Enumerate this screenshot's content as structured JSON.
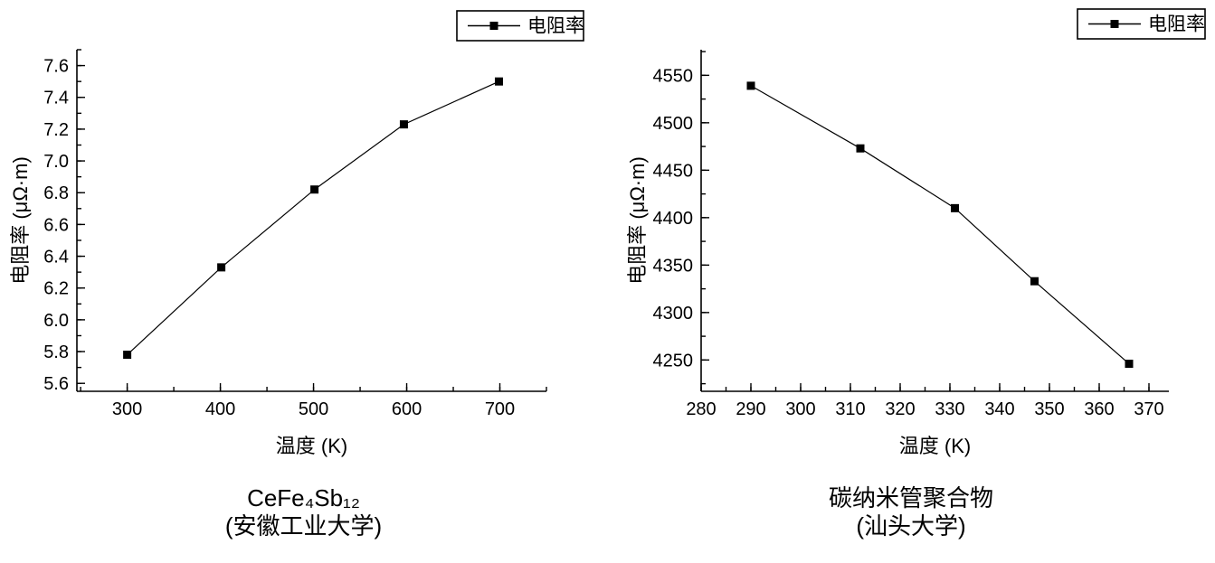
{
  "figure": {
    "background": "#ffffff",
    "text_color": "#000000",
    "axis_color": "#000000"
  },
  "chart_data": [
    {
      "type": "line",
      "title": "CeFe₄Sb₁₂",
      "subtitle": "(安徽工业大学)",
      "xlabel": "温度 (K)",
      "ylabel": "电阻率 (μΩ·m)",
      "legend": "电阻率",
      "legend_position": "top-right",
      "grid": false,
      "line_color": "#000000",
      "marker": "square",
      "marker_color": "#000000",
      "series": [
        {
          "name": "电阻率",
          "x": [
            300,
            401,
            501,
            597,
            699
          ],
          "y": [
            5.78,
            6.33,
            6.82,
            7.23,
            7.5
          ]
        }
      ],
      "xlim": [
        246,
        750
      ],
      "ylim": [
        5.55,
        7.7
      ],
      "xticks": [
        300,
        400,
        500,
        600,
        700
      ],
      "xtick_labels": [
        "300",
        "400",
        "500",
        "600",
        "700"
      ],
      "yticks": [
        5.6,
        5.8,
        6.0,
        6.2,
        6.4,
        6.6,
        6.8,
        7.0,
        7.2,
        7.4,
        7.6
      ],
      "ytick_labels": [
        "5.6",
        "5.8",
        "6.0",
        "6.2",
        "6.4",
        "6.6",
        "6.8",
        "7.0",
        "7.2",
        "7.4",
        "7.6"
      ],
      "xminor": 50,
      "yminor": 0.1
    },
    {
      "type": "line",
      "title": "碳纳米管聚合物",
      "subtitle": "(汕头大学)",
      "xlabel": "温度 (K)",
      "ylabel": "电阻率 (μΩ·m)",
      "legend": "电阻率",
      "legend_position": "top-right",
      "grid": false,
      "line_color": "#000000",
      "marker": "square",
      "marker_color": "#000000",
      "series": [
        {
          "name": "电阻率",
          "x": [
            290,
            312,
            331,
            347,
            366
          ],
          "y": [
            4539,
            4473,
            4410,
            4333,
            4246
          ]
        }
      ],
      "xlim": [
        280,
        374
      ],
      "ylim": [
        4217,
        4577
      ],
      "xticks": [
        280,
        290,
        300,
        310,
        320,
        330,
        340,
        350,
        360,
        370
      ],
      "xtick_labels": [
        "280",
        "290",
        "300",
        "310",
        "320",
        "330",
        "340",
        "350",
        "360",
        "370"
      ],
      "yticks": [
        4250,
        4300,
        4350,
        4400,
        4450,
        4500,
        4550
      ],
      "ytick_labels": [
        "4250",
        "4300",
        "4350",
        "4400",
        "4450",
        "4500",
        "4550"
      ],
      "xminor": 5,
      "yminor": 25
    }
  ]
}
